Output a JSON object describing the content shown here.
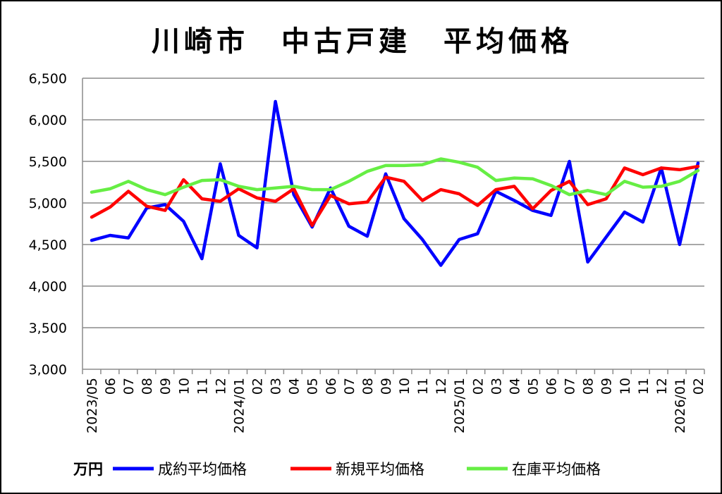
{
  "chart_data": {
    "type": "line",
    "title": "川崎市　中古戸建　平均価格",
    "unit": "万円",
    "categories": [
      "2023/05",
      "06",
      "07",
      "08",
      "09",
      "10",
      "11",
      "12",
      "2024/01",
      "02",
      "03",
      "04",
      "05",
      "06",
      "07",
      "08",
      "09",
      "10",
      "11",
      "12",
      "2025/01",
      "02",
      "03",
      "04",
      "05",
      "06",
      "07",
      "08",
      "09",
      "10",
      "11",
      "12",
      "2026/01",
      "02"
    ],
    "ylim": [
      3000,
      6500
    ],
    "yticks": [
      "3,000",
      "3,500",
      "4,000",
      "4,500",
      "5,000",
      "5,500",
      "6,000",
      "6,500"
    ],
    "grid": true,
    "legend_position": "bottom",
    "series": [
      {
        "name": "成約平均価格",
        "color": "#0000ff",
        "values": [
          4550,
          4610,
          4580,
          4940,
          4980,
          4780,
          4330,
          5470,
          4610,
          4460,
          6220,
          5100,
          4710,
          5180,
          4720,
          4600,
          5350,
          4810,
          4560,
          4250,
          4560,
          4630,
          5140,
          5030,
          4910,
          4850,
          5500,
          4290,
          4590,
          4890,
          4770,
          5420,
          4500,
          5480
        ]
      },
      {
        "name": "新規平均価格",
        "color": "#ff0000",
        "values": [
          4830,
          4950,
          5140,
          4960,
          4910,
          5280,
          5050,
          5020,
          5170,
          5060,
          5020,
          5170,
          4730,
          5090,
          4990,
          5010,
          5310,
          5260,
          5030,
          5160,
          5110,
          4970,
          5160,
          5200,
          4930,
          5150,
          5260,
          4980,
          5050,
          5420,
          5340,
          5420,
          5400,
          5440
        ]
      },
      {
        "name": "在庫平均価格",
        "color": "#66ee44",
        "values": [
          5130,
          5170,
          5260,
          5160,
          5100,
          5190,
          5270,
          5280,
          5200,
          5160,
          5180,
          5200,
          5160,
          5160,
          5260,
          5380,
          5450,
          5450,
          5460,
          5530,
          5490,
          5430,
          5270,
          5300,
          5290,
          5210,
          5100,
          5150,
          5100,
          5260,
          5190,
          5200,
          5260,
          5390
        ]
      }
    ]
  }
}
